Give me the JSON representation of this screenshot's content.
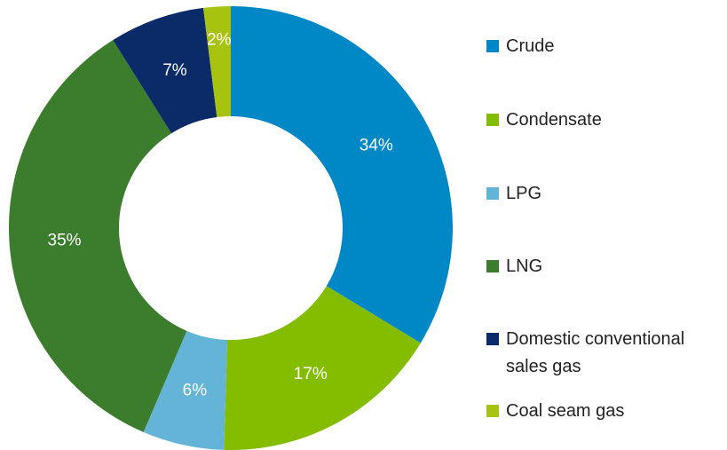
{
  "chart_data": {
    "type": "donut",
    "categories": [
      "Crude",
      "Condensate",
      "LPG",
      "LNG",
      "Domestic conventional sales gas",
      "Coal seam gas"
    ],
    "values": [
      34,
      17,
      6,
      35,
      7,
      2
    ],
    "value_labels": [
      "34%",
      "17%",
      "6%",
      "35%",
      "7%",
      "2%"
    ],
    "colors": [
      "#0088c6",
      "#84bd00",
      "#63b4d6",
      "#3b7d2c",
      "#0b2a68",
      "#a7c20f"
    ],
    "legend": "right"
  }
}
